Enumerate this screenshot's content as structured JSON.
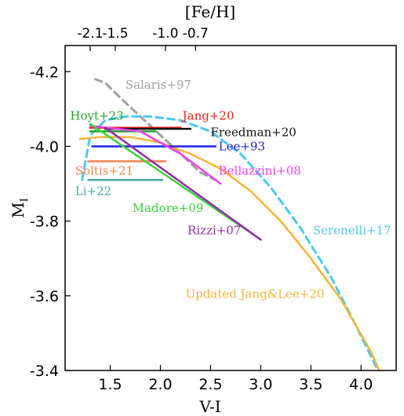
{
  "chart_data": {
    "type": "line",
    "xlabel": "V-I",
    "ylabel": "M",
    "ylabel_sub": "I",
    "top_xlabel": "[Fe/H]",
    "xlim": [
      1.05,
      4.35
    ],
    "ylim": [
      -4.27,
      -3.4
    ],
    "y_inverted": true,
    "grid": false,
    "x_ticks": [
      1.5,
      2.0,
      2.5,
      3.0,
      3.5,
      4.0
    ],
    "x_tick_labels": [
      "1.5",
      "2.0",
      "2.5",
      "3.0",
      "3.5",
      "4.0"
    ],
    "y_ticks": [
      -4.2,
      -4.0,
      -3.8,
      -3.6,
      -3.4
    ],
    "y_tick_labels": [
      "-4.2",
      "-4.0",
      "-3.8",
      "-3.6",
      "-3.4"
    ],
    "top_ticks": [
      {
        "label": "-2.1",
        "x": 1.3
      },
      {
        "label": "-1.5",
        "x": 1.55
      },
      {
        "label": "-1.0",
        "x": 2.05
      },
      {
        "label": "-0.7",
        "x": 2.35
      }
    ],
    "series": [
      {
        "name": "Salaris+97",
        "color": "#a0a0a0",
        "style": "dashed",
        "x": [
          1.35,
          1.45,
          1.6,
          1.8,
          2.0,
          2.2,
          2.4,
          2.55
        ],
        "y": [
          -4.18,
          -4.17,
          -4.13,
          -4.08,
          -4.03,
          -3.98,
          -3.93,
          -3.91
        ],
        "label_pos": [
          1.65,
          -4.165
        ],
        "label_anchor": "start"
      },
      {
        "name": "Serenelli+17",
        "color": "#4dc8f0",
        "style": "dashed",
        "x": [
          1.22,
          1.3,
          1.45,
          1.65,
          1.9,
          2.2,
          2.5,
          2.8,
          3.1,
          3.4,
          3.7,
          3.95,
          4.15
        ],
        "y": [
          -3.91,
          -4.03,
          -4.07,
          -4.08,
          -4.08,
          -4.07,
          -4.04,
          -3.98,
          -3.89,
          -3.78,
          -3.65,
          -3.52,
          -3.41
        ],
        "label_pos": [
          3.52,
          -3.775
        ],
        "label_anchor": "start"
      },
      {
        "name": "Updated Jang&Lee+20",
        "color": "#f8b339",
        "style": "solid",
        "x": [
          1.2,
          1.4,
          1.7,
          2.0,
          2.3,
          2.6,
          2.9,
          3.2,
          3.5,
          3.8,
          4.1,
          4.18
        ],
        "y": [
          -4.02,
          -4.025,
          -4.025,
          -4.01,
          -3.98,
          -3.94,
          -3.88,
          -3.8,
          -3.7,
          -3.59,
          -3.45,
          -3.4
        ],
        "label_pos": [
          2.25,
          -3.605
        ],
        "label_anchor": "start"
      },
      {
        "name": "Hoyt+23",
        "color": "#2aa02a",
        "style": "solid",
        "x": [
          1.3,
          1.95
        ],
        "y": [
          -4.04,
          -4.04
        ],
        "label_pos": [
          1.1,
          -4.082
        ],
        "label_anchor": "start"
      },
      {
        "name": "Jang+20",
        "color": "#ee1c1c",
        "style": "solid",
        "x": [
          1.3,
          2.2
        ],
        "y": [
          -4.05,
          -4.05
        ],
        "label_pos": [
          2.22,
          -4.082
        ],
        "label_anchor": "start"
      },
      {
        "name": "Freedman+20",
        "color": "#111111",
        "style": "solid",
        "x": [
          1.45,
          2.3
        ],
        "y": [
          -4.047,
          -4.047
        ],
        "label_pos": [
          2.5,
          -4.038
        ],
        "label_anchor": "start"
      },
      {
        "name": "Lee+93",
        "color": "#2020e0",
        "style": "solid",
        "x": [
          1.32,
          2.55
        ],
        "y": [
          -4.0,
          -4.0
        ],
        "label_pos": [
          2.58,
          -4.0
        ],
        "label_anchor": "start"
      },
      {
        "name": "Bellazzini+08",
        "color": "#f040f0",
        "style": "solid",
        "x": [
          1.3,
          1.8,
          2.2,
          2.6
        ],
        "y": [
          -4.055,
          -4.04,
          -3.98,
          -3.9
        ],
        "label_pos": [
          2.58,
          -3.935
        ],
        "label_anchor": "start"
      },
      {
        "name": "Soltis+21",
        "color": "#fa8050",
        "style": "solid",
        "x": [
          1.28,
          2.05
        ],
        "y": [
          -3.96,
          -3.96
        ],
        "label_pos": [
          1.15,
          -3.935
        ],
        "label_anchor": "start"
      },
      {
        "name": "Li+22",
        "color": "#4aa6a6",
        "style": "solid",
        "x": [
          1.28,
          2.02
        ],
        "y": [
          -3.91,
          -3.91
        ],
        "label_pos": [
          1.15,
          -3.88
        ],
        "label_anchor": "start"
      },
      {
        "name": "Madore+09",
        "color": "#3ed03e",
        "style": "solid",
        "x": [
          1.3,
          3.0
        ],
        "y": [
          -4.06,
          -3.75
        ],
        "label_pos": [
          1.72,
          -3.835
        ],
        "label_anchor": "start"
      },
      {
        "name": "Rizzi+07",
        "color": "#9030a8",
        "style": "solid",
        "x": [
          1.45,
          3.0
        ],
        "y": [
          -4.05,
          -3.75
        ],
        "label_pos": [
          2.27,
          -3.775
        ],
        "label_anchor": "start"
      }
    ]
  }
}
